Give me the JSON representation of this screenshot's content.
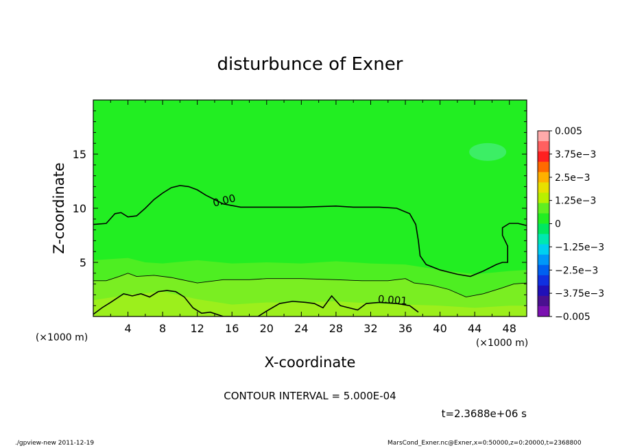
{
  "chart_data": {
    "type": "contour",
    "title": "disturbunce of Exner",
    "xlabel": "X-coordinate",
    "ylabel": "Z-coordinate",
    "x_unit": "(×1000 m)",
    "y_unit": "(×1000 m)",
    "xlim": [
      0,
      50
    ],
    "ylim": [
      0,
      20
    ],
    "xticks": [
      "4",
      "8",
      "12",
      "16",
      "20",
      "24",
      "28",
      "32",
      "36",
      "40",
      "44",
      "48"
    ],
    "yticks": [
      "5",
      "10",
      "15"
    ],
    "contour_interval_text": "CONTOUR INTERVAL = 5.000E-04",
    "time_text": "t=2.3688e+06 s",
    "contours": [
      {
        "label": "0.00",
        "points": [
          [
            0,
            8.5
          ],
          [
            1.5,
            8.6
          ],
          [
            2.5,
            9.5
          ],
          [
            3.2,
            9.6
          ],
          [
            4,
            9.2
          ],
          [
            5,
            9.3
          ],
          [
            6,
            10
          ],
          [
            7,
            10.8
          ],
          [
            8,
            11.4
          ],
          [
            9,
            11.9
          ],
          [
            10,
            12.1
          ],
          [
            11,
            12
          ],
          [
            12,
            11.7
          ],
          [
            13,
            11.2
          ],
          [
            14,
            10.8
          ],
          [
            15,
            10.4
          ],
          [
            17,
            10.1
          ],
          [
            20,
            10.1
          ],
          [
            24,
            10.1
          ],
          [
            28,
            10.2
          ],
          [
            30,
            10.1
          ],
          [
            33,
            10.1
          ],
          [
            35,
            10
          ],
          [
            36.5,
            9.5
          ],
          [
            37.2,
            8.5
          ],
          [
            37.5,
            7
          ],
          [
            37.7,
            5.6
          ],
          [
            38.4,
            4.8
          ],
          [
            40,
            4.3
          ],
          [
            42,
            3.9
          ],
          [
            43.5,
            3.7
          ],
          [
            45,
            4.2
          ],
          [
            46.5,
            4.8
          ],
          [
            47.2,
            5
          ],
          [
            47.8,
            5
          ],
          [
            47.8,
            6.5
          ],
          [
            47.2,
            7.5
          ],
          [
            47.2,
            8.2
          ],
          [
            48,
            8.6
          ],
          [
            49,
            8.6
          ],
          [
            50,
            8.4
          ]
        ]
      },
      {
        "label": "",
        "points": [
          [
            0,
            3.3
          ],
          [
            1.5,
            3.3
          ],
          [
            3,
            3.7
          ],
          [
            4,
            4
          ],
          [
            5,
            3.7
          ],
          [
            7,
            3.8
          ],
          [
            9,
            3.6
          ],
          [
            12,
            3.1
          ],
          [
            15,
            3.4
          ],
          [
            18,
            3.4
          ],
          [
            20,
            3.5
          ],
          [
            24,
            3.5
          ],
          [
            28,
            3.4
          ],
          [
            31,
            3.3
          ],
          [
            34,
            3.3
          ],
          [
            36,
            3.5
          ],
          [
            37,
            3.1
          ],
          [
            39,
            2.9
          ],
          [
            41,
            2.5
          ],
          [
            43,
            1.8
          ],
          [
            45,
            2.1
          ],
          [
            47,
            2.6
          ],
          [
            48.5,
            3.0
          ],
          [
            50,
            3.1
          ]
        ]
      },
      {
        "label": "0.001",
        "points": [
          [
            0,
            0.2
          ],
          [
            1,
            0.8
          ],
          [
            2,
            1.3
          ],
          [
            3.5,
            2.1
          ],
          [
            4.5,
            1.9
          ],
          [
            5.5,
            2.1
          ],
          [
            6.5,
            1.8
          ],
          [
            7.5,
            2.3
          ],
          [
            8.5,
            2.4
          ],
          [
            9.5,
            2.3
          ],
          [
            10.5,
            1.8
          ],
          [
            11.5,
            0.8
          ],
          [
            12.5,
            0.3
          ],
          [
            13.5,
            0.4
          ],
          [
            15,
            0
          ],
          [
            19,
            0
          ],
          [
            20,
            0.5
          ],
          [
            21.5,
            1.2
          ],
          [
            23,
            1.4
          ],
          [
            24.5,
            1.3
          ],
          [
            25.5,
            1.2
          ],
          [
            26.5,
            0.8
          ],
          [
            27.5,
            1.9
          ],
          [
            28.5,
            1.0
          ],
          [
            29.5,
            0.8
          ],
          [
            30.5,
            0.6
          ],
          [
            31.5,
            1.2
          ],
          [
            33,
            1.3
          ],
          [
            35,
            1.2
          ],
          [
            36.5,
            1.0
          ],
          [
            37,
            0.7
          ],
          [
            37.5,
            0.4
          ]
        ]
      }
    ],
    "colorbar": {
      "labels": [
        "0.005",
        "3.75e−3",
        "2.5e−3",
        "1.25e−3",
        "0",
        "−1.25e−3",
        "−2.5e−3",
        "−3.75e−3",
        "−0.005"
      ],
      "colors": [
        "#ffaaaa",
        "#ff6060",
        "#ff2020",
        "#ff6a00",
        "#ffb000",
        "#e8e000",
        "#b8f000",
        "#60ef20",
        "#22ee22",
        "#00e860",
        "#00e8b0",
        "#00d0f0",
        "#0098f8",
        "#0060f0",
        "#1030e0",
        "#2010b8",
        "#4a1090",
        "#7a10b0"
      ],
      "range": [
        -0.005,
        0.005
      ]
    },
    "field_colors": {
      "background": "#22ee22",
      "upper_patch": "#44ee77",
      "middle_band": "#4eee22",
      "lower_band": "#7aee22",
      "bottom_band": "#9cef1c"
    }
  },
  "footer": {
    "left": "./gpview-new   2011-12-19",
    "right": "MarsCond_Exner.nc@Exner,x=0:50000,z=0:20000,t=2368800"
  }
}
